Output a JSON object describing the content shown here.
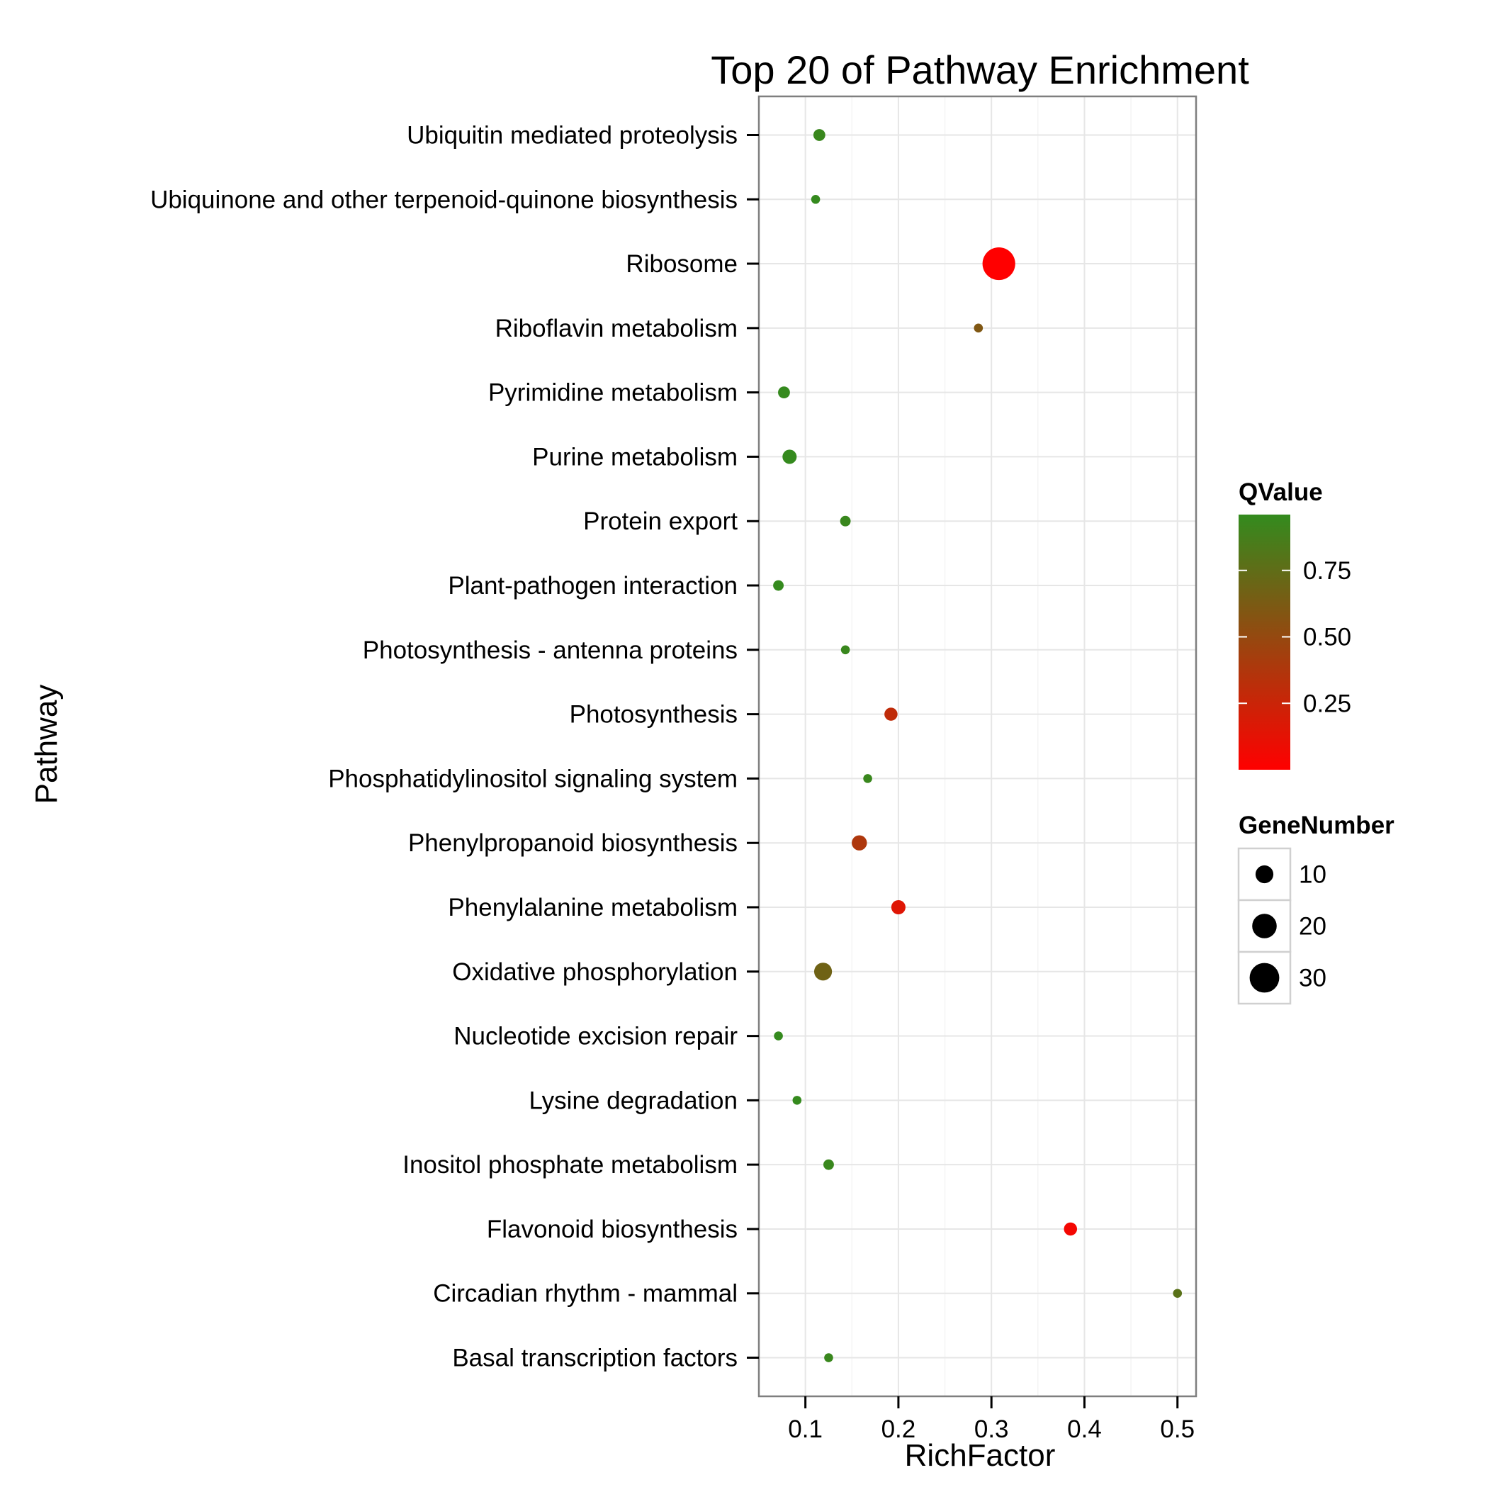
{
  "chart_data": {
    "type": "scatter",
    "title": "Top 20 of Pathway Enrichment",
    "xlabel": "RichFactor",
    "ylabel": "Pathway",
    "xlim": [
      0.05,
      0.52
    ],
    "xticks": [
      0.1,
      0.2,
      0.3,
      0.4,
      0.5
    ],
    "xtick_labels": [
      "0.1",
      "0.2",
      "0.3",
      "0.4",
      "0.5"
    ],
    "grid": true,
    "categories": [
      "Basal transcription factors",
      "Circadian rhythm - mammal",
      "Flavonoid biosynthesis",
      "Inositol phosphate metabolism",
      "Lysine degradation",
      "Nucleotide excision repair",
      "Oxidative phosphorylation",
      "Phenylalanine metabolism",
      "Phenylpropanoid biosynthesis",
      "Phosphatidylinositol signaling system",
      "Photosynthesis",
      "Photosynthesis - antenna proteins",
      "Plant-pathogen interaction",
      "Protein export",
      "Purine metabolism",
      "Pyrimidine metabolism",
      "Riboflavin metabolism",
      "Ribosome",
      "Ubiquinone and other terpenoid-quinone biosynthesis",
      "Ubiquitin mediated proteolysis"
    ],
    "points": [
      {
        "pathway": "Basal transcription factors",
        "x": 0.125,
        "genes": 2,
        "qvalue": 0.93
      },
      {
        "pathway": "Circadian rhythm - mammal",
        "x": 0.5,
        "genes": 2,
        "qvalue": 0.78
      },
      {
        "pathway": "Flavonoid biosynthesis",
        "x": 0.385,
        "genes": 5,
        "qvalue": 0.05
      },
      {
        "pathway": "Inositol phosphate metabolism",
        "x": 0.125,
        "genes": 3,
        "qvalue": 0.93
      },
      {
        "pathway": "Lysine degradation",
        "x": 0.091,
        "genes": 2,
        "qvalue": 0.95
      },
      {
        "pathway": "Nucleotide excision repair",
        "x": 0.071,
        "genes": 2,
        "qvalue": 0.95
      },
      {
        "pathway": "Oxidative phosphorylation",
        "x": 0.119,
        "genes": 10,
        "qvalue": 0.68
      },
      {
        "pathway": "Phenylalanine metabolism",
        "x": 0.2,
        "genes": 6,
        "qvalue": 0.15
      },
      {
        "pathway": "Phenylpropanoid biosynthesis",
        "x": 0.158,
        "genes": 7,
        "qvalue": 0.38
      },
      {
        "pathway": "Phosphatidylinositol signaling system",
        "x": 0.167,
        "genes": 2,
        "qvalue": 0.93
      },
      {
        "pathway": "Photosynthesis",
        "x": 0.192,
        "genes": 5,
        "qvalue": 0.3
      },
      {
        "pathway": "Photosynthesis - antenna proteins",
        "x": 0.143,
        "genes": 2,
        "qvalue": 0.93
      },
      {
        "pathway": "Plant-pathogen interaction",
        "x": 0.071,
        "genes": 3,
        "qvalue": 0.95
      },
      {
        "pathway": "Protein export",
        "x": 0.143,
        "genes": 3,
        "qvalue": 0.93
      },
      {
        "pathway": "Purine metabolism",
        "x": 0.083,
        "genes": 6,
        "qvalue": 0.95
      },
      {
        "pathway": "Pyrimidine metabolism",
        "x": 0.077,
        "genes": 4,
        "qvalue": 0.95
      },
      {
        "pathway": "Riboflavin metabolism",
        "x": 0.286,
        "genes": 2,
        "qvalue": 0.6
      },
      {
        "pathway": "Ribosome",
        "x": 0.308,
        "genes": 37,
        "qvalue": 0.0
      },
      {
        "pathway": "Ubiquinone and other terpenoid-quinone biosynthesis",
        "x": 0.111,
        "genes": 2,
        "qvalue": 0.95
      },
      {
        "pathway": "Ubiquitin mediated proteolysis",
        "x": 0.115,
        "genes": 4,
        "qvalue": 0.93
      }
    ],
    "color_legend": {
      "title": "QValue",
      "ticks": [
        0.25,
        0.5,
        0.75
      ],
      "tick_labels": [
        "0.25",
        "0.50",
        "0.75"
      ],
      "range": [
        0.0,
        0.96
      ],
      "low_color": "#ff0000",
      "high_color": "#338b1e"
    },
    "size_legend": {
      "title": "GeneNumber",
      "values": [
        10,
        20,
        30
      ],
      "labels": [
        "10",
        "20",
        "30"
      ]
    },
    "legend_position": "right"
  }
}
